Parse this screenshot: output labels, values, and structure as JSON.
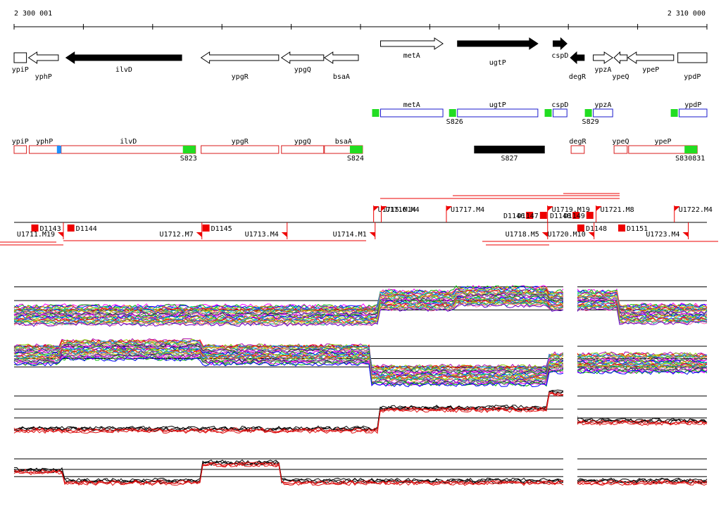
{
  "coords": {
    "start_label": "2 300 001",
    "end_label": "2 310 000",
    "start": 2300001,
    "end": 2310000
  },
  "genes": [
    {
      "name": "ypiP",
      "strand": "+",
      "filled": false,
      "from": 2300001,
      "to": 2300180
    },
    {
      "name": "yphP",
      "strand": "-",
      "filled": false,
      "from": 2300210,
      "to": 2300640
    },
    {
      "name": "ilvD",
      "strand": "-",
      "filled": true,
      "from": 2300750,
      "to": 2302420
    },
    {
      "name": "ypgR",
      "strand": "-",
      "filled": false,
      "from": 2302700,
      "to": 2303820
    },
    {
      "name": "ypgQ",
      "strand": "-",
      "filled": false,
      "from": 2303860,
      "to": 2304470
    },
    {
      "name": "bsaA",
      "strand": "-",
      "filled": false,
      "from": 2304480,
      "to": 2304970
    },
    {
      "name": "metA",
      "strand": "+",
      "filled": false,
      "from": 2305290,
      "to": 2306190
    },
    {
      "name": "ugtP",
      "strand": "+",
      "filled": true,
      "from": 2306400,
      "to": 2307560
    },
    {
      "name": "cspD",
      "strand": "+",
      "filled": true,
      "from": 2307780,
      "to": 2307980
    },
    {
      "name": "degR",
      "strand": "-",
      "filled": true,
      "from": 2308030,
      "to": 2308230
    },
    {
      "name": "ypzA",
      "strand": "+",
      "filled": false,
      "from": 2308360,
      "to": 2308640
    },
    {
      "name": "ypeQ",
      "strand": "-",
      "filled": false,
      "from": 2308660,
      "to": 2308850
    },
    {
      "name": "ypeP",
      "strand": "-",
      "filled": false,
      "from": 2308860,
      "to": 2309520
    },
    {
      "name": "ypdP",
      "strand": "+",
      "filled": false,
      "from": 2309580,
      "to": 2310000
    }
  ],
  "transcripts_plus": [
    {
      "name": "metA",
      "from": 2305290,
      "to": 2306190,
      "tag": ""
    },
    {
      "name": "ugtP",
      "from": 2306400,
      "to": 2307560,
      "tag": "S826"
    },
    {
      "name": "cspD",
      "from": 2307780,
      "to": 2307980,
      "tag": ""
    },
    {
      "name": "ypzA",
      "from": 2308360,
      "to": 2308640,
      "tag": "S829"
    },
    {
      "name": "ypdP",
      "from": 2309600,
      "to": 2310000,
      "tag": ""
    }
  ],
  "transcripts_minus": [
    {
      "name": "ypiP",
      "from": 2300001,
      "to": 2300180
    },
    {
      "name": "yphP",
      "from": 2300220,
      "to": 2300660
    },
    {
      "name": "ilvD",
      "from": 2300680,
      "to": 2302620,
      "tag": "S823"
    },
    {
      "name": "ypgR",
      "from": 2302700,
      "to": 2303820
    },
    {
      "name": "ypgQ",
      "from": 2303860,
      "to": 2304470
    },
    {
      "name": "bsaA",
      "from": 2304480,
      "to": 2305030,
      "tag": "S824"
    },
    {
      "name": "degR",
      "from": 2308040,
      "to": 2308230
    },
    {
      "name": "ypeQ",
      "from": 2308660,
      "to": 2308850
    },
    {
      "name": "ypeP",
      "from": 2308870,
      "to": 2309860,
      "tag": "S830831"
    }
  ],
  "other_segment": {
    "name": "S827",
    "from": 2306640,
    "to": 2307660
  },
  "upper_features": [
    {
      "label": "U1715.M14",
      "pos": 2305190
    },
    {
      "label": "U1716.M4",
      "pos": 2305300
    },
    {
      "label": "U1717.M4",
      "pos": 2306240
    },
    {
      "label": "D1146",
      "pos": 2307390
    },
    {
      "label": "D1147",
      "pos": 2307590
    },
    {
      "label": "U1719.M19",
      "pos": 2307700
    },
    {
      "label": "D1148",
      "pos": 2308060
    },
    {
      "label": "D1149",
      "pos": 2308260
    },
    {
      "label": "U1721.M8",
      "pos": 2308400
    },
    {
      "label": "U1722.M4",
      "pos": 2309530
    }
  ],
  "lower_features": [
    {
      "label": "D1143",
      "pos": 2300250
    },
    {
      "label": "U1711.M19",
      "pos": 2300001
    },
    {
      "label": "D1144",
      "pos": 2300770
    },
    {
      "label": "U1712.M7",
      "pos": 2302000
    },
    {
      "label": "D1145",
      "pos": 2302720
    },
    {
      "label": "U1713.M4",
      "pos": 2303230
    },
    {
      "label": "U1714.M1",
      "pos": 2304500
    },
    {
      "label": "U1718.M5",
      "pos": 2306990
    },
    {
      "label": "U1720.M10",
      "pos": 2307660
    },
    {
      "label": "D1148",
      "pos": 2308130
    },
    {
      "label": "D1151",
      "pos": 2308720
    },
    {
      "label": "U1723.M4",
      "pos": 2309020
    }
  ],
  "colors": {
    "plus_box": "#1a1acc",
    "minus_box": "#d81c1c",
    "terminator": "#22dd22",
    "promoter": "#1e90ff",
    "feature_red": "#ee0000",
    "profile_red": "#dd1111",
    "palette": [
      "#ff00ff",
      "#00bb00",
      "#0000ff",
      "#ff8800",
      "#00cccc",
      "#aa00aa",
      "#88cc00",
      "#ff0000",
      "#0088ff",
      "#996633",
      "#cccc00",
      "#00aa77",
      "#ff66aa",
      "#6600cc",
      "#333333",
      "#999999"
    ]
  }
}
